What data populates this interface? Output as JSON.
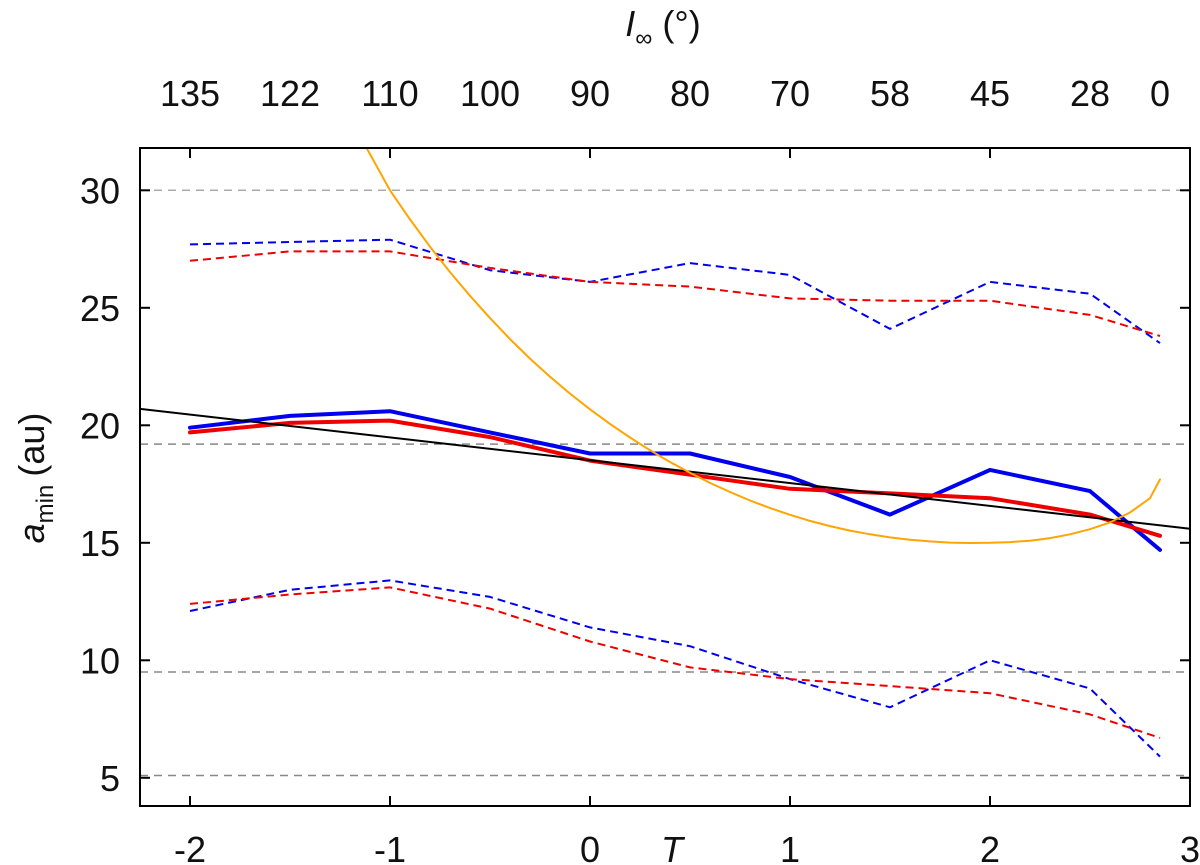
{
  "chart_data": {
    "type": "line",
    "x_axis": {
      "label": "T",
      "range": [
        -2.25,
        3
      ],
      "ticks": [
        {
          "value": -2,
          "label": "-2"
        },
        {
          "value": -1,
          "label": "-1"
        },
        {
          "value": 0,
          "label": "0"
        },
        {
          "value": 1,
          "label": "1"
        },
        {
          "value": 2,
          "label": "2"
        },
        {
          "value": 3,
          "label": "3"
        }
      ]
    },
    "top_axis": {
      "label_symbol": "I",
      "label_subscript": "∞",
      "label_unit": "(°)",
      "ticks": [
        {
          "value": -2,
          "label": "135"
        },
        {
          "value": -1.5,
          "label": "122"
        },
        {
          "value": -1,
          "label": "110"
        },
        {
          "value": -0.5,
          "label": "100"
        },
        {
          "value": 0,
          "label": "90"
        },
        {
          "value": 0.5,
          "label": "80"
        },
        {
          "value": 1,
          "label": "70"
        },
        {
          "value": 1.5,
          "label": "58"
        },
        {
          "value": 2,
          "label": "45"
        },
        {
          "value": 2.5,
          "label": "28"
        },
        {
          "value": 2.85,
          "label": "0"
        }
      ]
    },
    "y_axis": {
      "label_symbol": "a",
      "label_subscript": "min",
      "label_unit": "(au)",
      "range": [
        3.8,
        31.8
      ],
      "ticks": [
        {
          "value": 5,
          "label": "5"
        },
        {
          "value": 10,
          "label": "10"
        },
        {
          "value": 15,
          "label": "15"
        },
        {
          "value": 20,
          "label": "20"
        },
        {
          "value": 25,
          "label": "25"
        },
        {
          "value": 30,
          "label": "30"
        }
      ]
    },
    "reference_lines": [
      {
        "y": 30.0,
        "color": "#aaaaaa"
      },
      {
        "y": 19.2,
        "color": "#888888"
      },
      {
        "y": 9.5,
        "color": "#888888"
      },
      {
        "y": 5.1,
        "color": "#888888"
      }
    ],
    "series": [
      {
        "color": "#0000ee",
        "style": "dashed",
        "width": 2,
        "x": [
          -2,
          -1.5,
          -1,
          -0.5,
          0,
          0.5,
          1,
          1.5,
          2,
          2.5,
          2.85
        ],
        "y": [
          27.7,
          27.8,
          27.9,
          26.6,
          26.1,
          26.9,
          26.4,
          24.1,
          26.1,
          25.6,
          23.5
        ]
      },
      {
        "color": "#ee0000",
        "style": "dashed",
        "width": 2,
        "x": [
          -2,
          -1.5,
          -1,
          -0.5,
          0,
          0.5,
          1,
          1.5,
          2,
          2.5,
          2.85
        ],
        "y": [
          27.0,
          27.4,
          27.4,
          26.7,
          26.1,
          25.9,
          25.4,
          25.3,
          25.3,
          24.7,
          23.8
        ]
      },
      {
        "color": "#0000ee",
        "style": "solid",
        "width": 4,
        "x": [
          -2,
          -1.5,
          -1,
          -0.5,
          0,
          0.5,
          1,
          1.5,
          2,
          2.5,
          2.85
        ],
        "y": [
          19.9,
          20.4,
          20.6,
          19.7,
          18.8,
          18.8,
          17.8,
          16.2,
          18.1,
          17.2,
          14.7
        ]
      },
      {
        "color": "#ee0000",
        "style": "solid",
        "width": 4,
        "x": [
          -2,
          -1.5,
          -1,
          -0.5,
          0,
          0.5,
          1,
          1.5,
          2,
          2.5,
          2.85
        ],
        "y": [
          19.7,
          20.1,
          20.2,
          19.5,
          18.5,
          17.9,
          17.3,
          17.1,
          16.9,
          16.2,
          15.3
        ]
      },
      {
        "color": "#0000ee",
        "style": "dashed",
        "width": 2,
        "x": [
          -2,
          -1.5,
          -1,
          -0.5,
          0,
          0.5,
          1,
          1.5,
          2,
          2.5,
          2.85
        ],
        "y": [
          12.1,
          13.0,
          13.4,
          12.7,
          11.4,
          10.6,
          9.2,
          8.0,
          10.0,
          8.8,
          5.9
        ]
      },
      {
        "color": "#ee0000",
        "style": "dashed",
        "width": 2,
        "x": [
          -2,
          -1.5,
          -1,
          -0.5,
          0,
          0.5,
          1,
          1.5,
          2,
          2.5,
          2.85
        ],
        "y": [
          12.4,
          12.8,
          13.1,
          12.2,
          10.8,
          9.7,
          9.2,
          8.9,
          8.6,
          7.7,
          6.7
        ]
      },
      {
        "color": "#000000",
        "style": "solid",
        "width": 2,
        "x": [
          -2.25,
          3.0
        ],
        "y": [
          20.7,
          15.6
        ]
      },
      {
        "color": "#ffa500",
        "style": "solid",
        "width": 2,
        "x": [
          -1.13,
          -1.0,
          -0.9,
          -0.8,
          -0.7,
          -0.6,
          -0.5,
          -0.4,
          -0.3,
          -0.2,
          -0.1,
          0.0,
          0.1,
          0.2,
          0.3,
          0.4,
          0.5,
          0.6,
          0.7,
          0.8,
          0.9,
          1.0,
          1.1,
          1.2,
          1.3,
          1.4,
          1.5,
          1.6,
          1.7,
          1.8,
          1.9,
          2.0,
          2.1,
          2.2,
          2.3,
          2.4,
          2.5,
          2.6,
          2.7,
          2.8,
          2.85
        ],
        "y": [
          32.0,
          30.0,
          28.76,
          27.6,
          26.52,
          25.51,
          24.56,
          23.67,
          22.84,
          22.07,
          21.35,
          20.68,
          20.06,
          19.48,
          18.94,
          18.44,
          17.98,
          17.55,
          17.16,
          16.8,
          16.48,
          16.19,
          15.93,
          15.71,
          15.52,
          15.36,
          15.23,
          15.13,
          15.06,
          15.01,
          14.99,
          15.0,
          15.03,
          15.09,
          15.2,
          15.36,
          15.58,
          15.87,
          16.29,
          16.9,
          17.7
        ]
      }
    ]
  }
}
